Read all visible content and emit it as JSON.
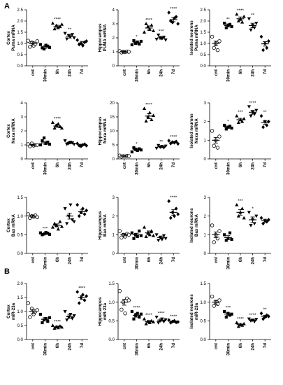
{
  "panel_labels": {
    "a": "A",
    "b": "B"
  },
  "colors": {
    "ink": "#000000",
    "open_marker": "#ffffff"
  },
  "chart_data": [
    {
      "type": "scatter",
      "ylabel": [
        "Cortex",
        "Puma mRNA"
      ],
      "ylim": [
        0,
        2.5
      ],
      "yticks": [
        0,
        0.5,
        1.0,
        1.5,
        2.0,
        2.5
      ],
      "ytick_labels": [
        "0.0",
        "0.5",
        "1.0",
        "1.5",
        "2.0",
        "2.5"
      ],
      "categories": [
        "cnt",
        "30min",
        "6h",
        "24h",
        "7d"
      ],
      "mean": [
        1.0,
        0.85,
        1.75,
        1.32,
        1.02
      ],
      "sem": [
        0.07,
        0.07,
        0.06,
        0.08,
        0.07
      ],
      "points": [
        [
          1.12,
          0.85,
          1.05,
          0.9,
          0.98,
          1.1
        ],
        [
          0.95,
          0.8,
          0.75,
          0.92,
          0.88,
          0.82
        ],
        [
          1.9,
          1.65,
          1.8,
          1.7,
          1.75,
          1.85
        ],
        [
          1.45,
          1.2,
          1.35,
          1.3,
          1.4,
          1.25
        ],
        [
          1.15,
          0.95,
          1.0,
          0.9,
          1.05,
          1.1
        ]
      ],
      "significance": [
        "",
        "",
        "****",
        "**",
        ""
      ]
    },
    {
      "type": "scatter",
      "ylabel": [
        "Hippocampus",
        "PUMA mRNA"
      ],
      "ylim": [
        0,
        4
      ],
      "yticks": [
        0,
        1,
        2,
        3,
        4
      ],
      "ytick_labels": [
        "0",
        "1",
        "2",
        "3",
        "4"
      ],
      "categories": [
        "cnt",
        "30min",
        "6h",
        "24h",
        "7d"
      ],
      "mean": [
        1.0,
        1.65,
        2.7,
        2.0,
        3.3
      ],
      "sem": [
        0.05,
        0.1,
        0.15,
        0.1,
        0.15
      ],
      "points": [
        [
          1.05,
          0.95,
          1.0,
          0.98,
          1.02,
          1.0
        ],
        [
          1.5,
          1.8,
          1.6,
          1.7,
          1.55,
          1.75
        ],
        [
          2.4,
          3.0,
          2.8,
          2.6,
          2.9,
          2.5
        ],
        [
          1.9,
          2.2,
          2.0,
          1.95,
          2.05,
          1.85
        ],
        [
          3.8,
          3.2,
          3.1,
          3.4,
          3.5,
          3.0
        ]
      ],
      "significance": [
        "",
        "*",
        "****",
        "***",
        "****"
      ]
    },
    {
      "type": "scatter",
      "ylabel": [
        "Isolated neurons",
        "Puma mRNA"
      ],
      "ylim": [
        0,
        2.5
      ],
      "yticks": [
        0,
        0.5,
        1.0,
        1.5,
        2.0,
        2.5
      ],
      "ytick_labels": [
        "0.0",
        "0.5",
        "1.0",
        "1.5",
        "2.0",
        "2.5"
      ],
      "categories": [
        "cnt",
        "30min",
        "6h",
        "24h",
        "7d"
      ],
      "mean": [
        1.0,
        1.8,
        2.1,
        1.8,
        0.98
      ],
      "sem": [
        0.1,
        0.07,
        0.08,
        0.1,
        0.1
      ],
      "points": [
        [
          1.3,
          0.8,
          1.0,
          0.7,
          1.1
        ],
        [
          1.9,
          1.7,
          1.8,
          1.85,
          1.75
        ],
        [
          2.3,
          2.0,
          2.1,
          1.95,
          2.2
        ],
        [
          2.1,
          1.6,
          1.8,
          1.7,
          1.9
        ],
        [
          1.3,
          0.7,
          1.0,
          0.8,
          1.1
        ]
      ],
      "significance": [
        "",
        "**",
        "****",
        "**",
        ""
      ]
    },
    {
      "type": "scatter",
      "ylabel": [
        "Cortex",
        "Noxa mRNA"
      ],
      "ylim": [
        0,
        4
      ],
      "yticks": [
        0,
        1,
        2,
        3,
        4
      ],
      "ytick_labels": [
        "0",
        "1",
        "2",
        "3",
        "4"
      ],
      "categories": [
        "cnt",
        "30min",
        "6h",
        "24h",
        "7d"
      ],
      "mean": [
        1.0,
        1.15,
        2.35,
        1.15,
        1.0
      ],
      "sem": [
        0.05,
        0.1,
        0.1,
        0.08,
        0.05
      ],
      "points": [
        [
          1.05,
          0.9,
          1.1,
          0.95,
          1.0,
          1.0
        ],
        [
          1.0,
          1.3,
          1.5,
          1.1,
          1.2,
          1.05
        ],
        [
          2.6,
          2.2,
          2.4,
          2.5,
          2.3,
          2.2
        ],
        [
          1.3,
          1.05,
          1.1,
          1.2,
          1.15,
          1.05
        ],
        [
          1.1,
          0.95,
          0.9,
          1.0,
          1.05,
          0.95
        ]
      ],
      "significance": [
        "",
        "",
        "****",
        "",
        ""
      ]
    },
    {
      "type": "scatter",
      "ylabel": [
        "Hippocampus",
        "Noxa mRNA"
      ],
      "ylim": [
        0,
        20
      ],
      "yticks": [
        0,
        5,
        10,
        15,
        20
      ],
      "ytick_labels": [
        "0",
        "5",
        "10",
        "15",
        "20"
      ],
      "categories": [
        "cnt",
        "30min",
        "6h",
        "24h",
        "7d"
      ],
      "mean": [
        1.0,
        3.3,
        15.3,
        4.3,
        5.9
      ],
      "sem": [
        0.1,
        0.4,
        0.9,
        0.3,
        0.3
      ],
      "points": [
        [
          1.2,
          0.8,
          1.0,
          0.9,
          1.1,
          1.0
        ],
        [
          2.5,
          4.0,
          3.5,
          3.0,
          3.6,
          3.2
        ],
        [
          18.0,
          13.5,
          15.0,
          16.5,
          14.0,
          15.5
        ],
        [
          3.8,
          4.8,
          4.2,
          4.5,
          4.0,
          4.6
        ],
        [
          6.5,
          5.5,
          6.0,
          5.8,
          6.2,
          5.4
        ]
      ],
      "significance": [
        "",
        "*",
        "****",
        "**",
        "****"
      ]
    },
    {
      "type": "scatter",
      "ylabel": [
        "Isolated neurons",
        "Noxa mRNA"
      ],
      "ylim": [
        0,
        3
      ],
      "yticks": [
        0,
        1,
        2,
        3
      ],
      "ytick_labels": [
        "0",
        "1",
        "2",
        "3"
      ],
      "categories": [
        "cnt",
        "30min",
        "6h",
        "24h",
        "7d"
      ],
      "mean": [
        1.0,
        1.7,
        2.1,
        2.5,
        1.95
      ],
      "sem": [
        0.15,
        0.06,
        0.07,
        0.1,
        0.1
      ],
      "points": [
        [
          1.5,
          0.7,
          1.0,
          0.6,
          1.2
        ],
        [
          1.8,
          1.6,
          1.7,
          1.75,
          1.65
        ],
        [
          2.3,
          1.95,
          2.1,
          2.0,
          2.15
        ],
        [
          2.8,
          2.3,
          2.5,
          2.4,
          2.6
        ],
        [
          2.3,
          1.7,
          2.0,
          1.8,
          2.0
        ]
      ],
      "significance": [
        "",
        "*",
        "***",
        "****",
        "**"
      ]
    },
    {
      "type": "scatter",
      "ylabel": [
        "Cortex",
        "Bax mRNA"
      ],
      "ylim": [
        0,
        1.5
      ],
      "yticks": [
        0,
        0.5,
        1.0,
        1.5
      ],
      "ytick_labels": [
        "0.0",
        "0.5",
        "1.0",
        "1.5"
      ],
      "categories": [
        "cnt",
        "30min",
        "6h",
        "24h",
        "7d"
      ],
      "mean": [
        1.0,
        0.53,
        0.75,
        1.0,
        1.12
      ],
      "sem": [
        0.03,
        0.02,
        0.04,
        0.08,
        0.06
      ],
      "points": [
        [
          1.05,
          0.95,
          1.0,
          0.98,
          1.02,
          0.97
        ],
        [
          0.55,
          0.5,
          0.52,
          0.56,
          0.54,
          0.51
        ],
        [
          0.7,
          0.8,
          0.75,
          0.65,
          0.85,
          0.72
        ],
        [
          1.2,
          0.8,
          1.0,
          1.3,
          0.9,
          0.85
        ],
        [
          1.3,
          1.0,
          1.1,
          1.2,
          1.05,
          1.15
        ]
      ],
      "significance": [
        "",
        "***",
        "",
        "",
        ""
      ]
    },
    {
      "type": "scatter",
      "ylabel": [
        "Hippocampus",
        "Bax mRNA"
      ],
      "ylim": [
        0,
        3
      ],
      "yticks": [
        0,
        1,
        2,
        3
      ],
      "ytick_labels": [
        "0",
        "1",
        "2",
        "3"
      ],
      "categories": [
        "cnt",
        "30min",
        "6h",
        "24h",
        "7d"
      ],
      "mean": [
        1.0,
        1.0,
        1.1,
        0.85,
        2.2
      ],
      "sem": [
        0.06,
        0.08,
        0.1,
        0.08,
        0.15
      ],
      "points": [
        [
          1.2,
          0.85,
          1.0,
          0.9,
          1.05,
          1.0
        ],
        [
          1.1,
          0.8,
          1.0,
          0.9,
          1.2,
          0.95
        ],
        [
          1.4,
          0.9,
          1.1,
          1.0,
          1.2,
          0.95
        ],
        [
          1.0,
          0.7,
          0.85,
          0.75,
          0.95,
          0.8
        ],
        [
          2.8,
          1.9,
          2.2,
          2.0,
          2.4,
          2.1
        ]
      ],
      "significance": [
        "",
        "",
        "",
        "",
        "****"
      ]
    },
    {
      "type": "scatter",
      "ylabel": [
        "Isolated neurons",
        "Bax mRNA"
      ],
      "ylim": [
        0,
        3
      ],
      "yticks": [
        0,
        1,
        2,
        3
      ],
      "ytick_labels": [
        "0",
        "1",
        "2",
        "3"
      ],
      "categories": [
        "cnt",
        "30min",
        "6h",
        "24h",
        "7d"
      ],
      "mean": [
        1.0,
        0.85,
        2.2,
        1.8,
        1.75
      ],
      "sem": [
        0.15,
        0.1,
        0.15,
        0.15,
        0.08
      ],
      "points": [
        [
          1.5,
          0.6,
          1.0,
          0.8,
          1.2
        ],
        [
          1.0,
          0.7,
          0.8,
          1.1,
          0.75
        ],
        [
          2.6,
          2.0,
          2.2,
          2.4,
          1.9
        ],
        [
          2.2,
          1.5,
          1.8,
          1.6,
          2.0
        ],
        [
          1.9,
          1.6,
          1.75,
          1.7,
          1.8
        ]
      ],
      "significance": [
        "",
        "",
        "***",
        "*",
        ""
      ]
    },
    {
      "type": "scatter",
      "ylabel": [
        "Cortex",
        "miR-23a"
      ],
      "ylim": [
        0,
        2.0
      ],
      "yticks": [
        0,
        0.5,
        1.0,
        1.5,
        2.0
      ],
      "ytick_labels": [
        "0.0",
        "0.5",
        "1.0",
        "1.5",
        "2.0"
      ],
      "categories": [
        "cnt",
        "30min",
        "6h",
        "24h",
        "7d"
      ],
      "mean": [
        1.0,
        0.72,
        0.45,
        0.82,
        1.5
      ],
      "sem": [
        0.08,
        0.06,
        0.03,
        0.06,
        0.07
      ],
      "points": [
        [
          1.3,
          0.8,
          1.1,
          0.9,
          1.0,
          1.05
        ],
        [
          0.9,
          0.6,
          0.7,
          0.75,
          0.65,
          0.78
        ],
        [
          0.5,
          0.4,
          0.45,
          0.42,
          0.48,
          0.44
        ],
        [
          1.0,
          0.7,
          0.8,
          0.9,
          0.75,
          0.85
        ],
        [
          1.7,
          1.3,
          1.5,
          1.6,
          1.4,
          1.55
        ]
      ],
      "significance": [
        "",
        "",
        "****",
        "",
        "****"
      ]
    },
    {
      "type": "scatter",
      "ylabel": [
        "Hippocampus",
        "miR-23a"
      ],
      "ylim": [
        0,
        1.5
      ],
      "yticks": [
        0,
        0.5,
        1.0,
        1.5
      ],
      "ytick_labels": [
        "0.0",
        "0.5",
        "1.0",
        "1.5"
      ],
      "categories": [
        "cnt",
        "30min",
        "6h",
        "24h",
        "7d"
      ],
      "mean": [
        1.0,
        0.65,
        0.48,
        0.52,
        0.48
      ],
      "sem": [
        0.08,
        0.05,
        0.03,
        0.03,
        0.02
      ],
      "points": [
        [
          1.3,
          0.8,
          1.0,
          0.7,
          1.1,
          1.05
        ],
        [
          0.75,
          0.55,
          0.65,
          0.7,
          0.6,
          0.68
        ],
        [
          0.55,
          0.42,
          0.48,
          0.45,
          0.5,
          0.47
        ],
        [
          0.6,
          0.45,
          0.5,
          0.55,
          0.48,
          0.53
        ],
        [
          0.52,
          0.45,
          0.48,
          0.5,
          0.46,
          0.47
        ]
      ],
      "significance": [
        "",
        "****",
        "****",
        "****",
        "****"
      ]
    },
    {
      "type": "scatter",
      "ylabel": [
        "Isolated neurons",
        "miR-23a"
      ],
      "ylim": [
        0,
        1.5
      ],
      "yticks": [
        0,
        0.5,
        1.0,
        1.5
      ],
      "ytick_labels": [
        "0.0",
        "0.5",
        "1.0",
        "1.5"
      ],
      "categories": [
        "cnt",
        "30min",
        "6h",
        "24h",
        "7d"
      ],
      "mean": [
        1.0,
        0.68,
        0.4,
        0.52,
        0.62
      ],
      "sem": [
        0.05,
        0.03,
        0.03,
        0.02,
        0.03
      ],
      "points": [
        [
          1.15,
          0.9,
          1.0,
          0.95,
          1.05
        ],
        [
          0.75,
          0.6,
          0.7,
          0.65,
          0.68
        ],
        [
          0.45,
          0.35,
          0.4,
          0.38,
          0.42
        ],
        [
          0.55,
          0.5,
          0.52,
          0.48,
          0.54
        ],
        [
          0.7,
          0.55,
          0.6,
          0.65,
          0.62
        ]
      ],
      "significance": [
        "",
        "***",
        "****",
        "****",
        "**"
      ]
    }
  ]
}
